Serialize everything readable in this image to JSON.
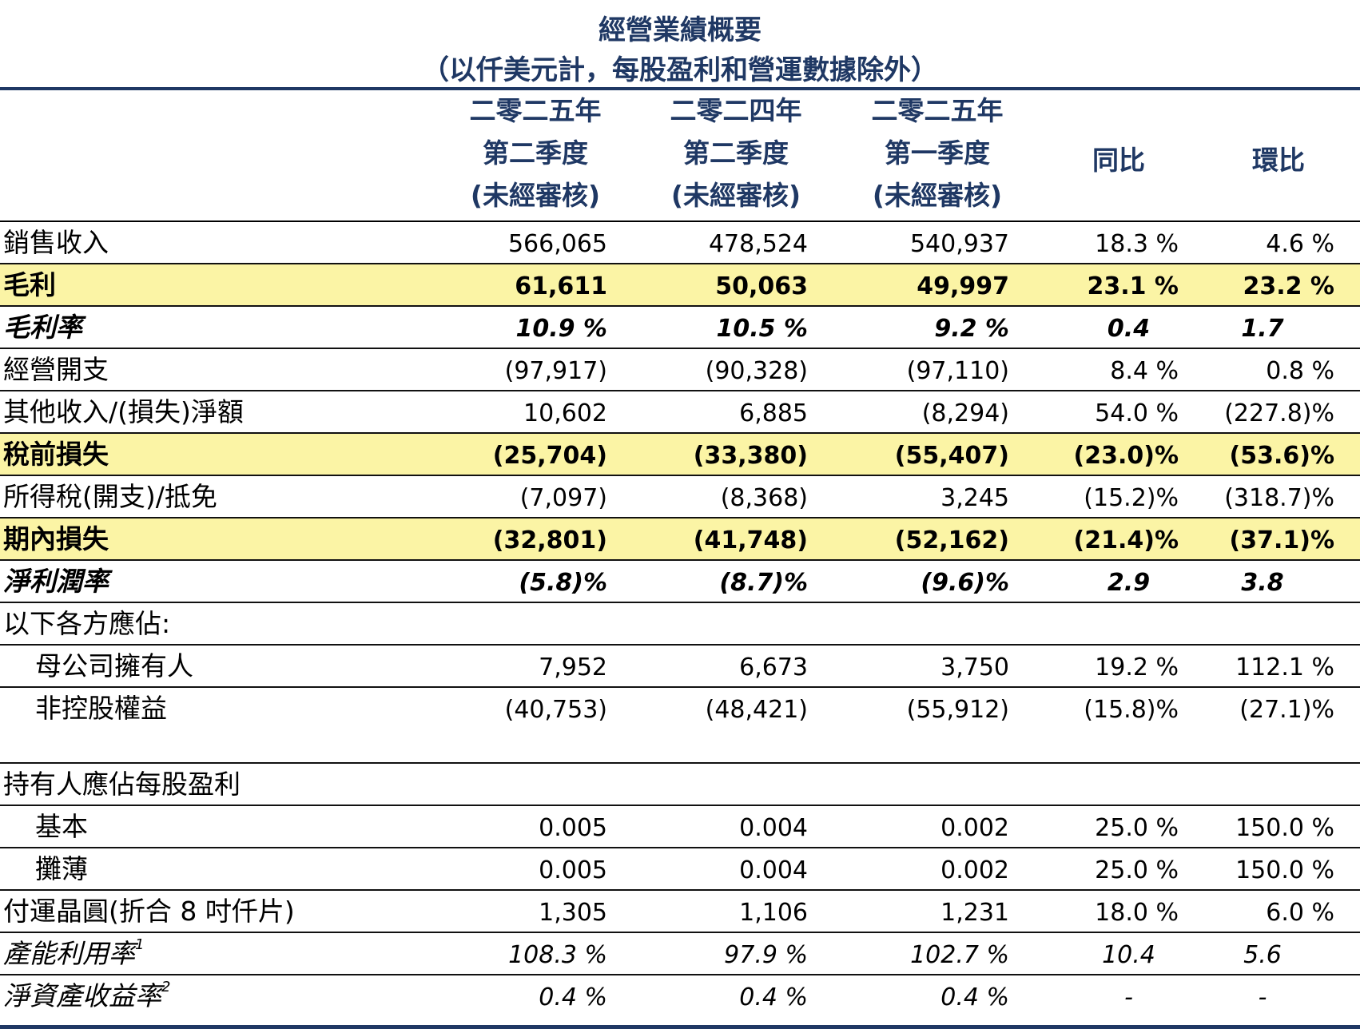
{
  "title": "經營業績概要",
  "subtitle": "（以仟美元計，每股盈利和營運數據除外）",
  "headers": {
    "col1": [
      "二零二五年",
      "第二季度",
      "(未經審核)"
    ],
    "col2": [
      "二零二四年",
      "第二季度",
      "(未經審核)"
    ],
    "col3": [
      "二零二五年",
      "第一季度",
      "(未經審核)"
    ],
    "col4": "同比",
    "col5": "環比"
  },
  "rows": [
    {
      "label": "銷售收入",
      "v": [
        "566,065",
        "478,524",
        "540,937",
        "18.3 %",
        "4.6 %"
      ]
    },
    {
      "label": "毛利",
      "v": [
        "61,611",
        "50,063",
        "49,997",
        "23.1 %",
        "23.2 %"
      ]
    },
    {
      "label": "毛利率",
      "v": [
        "10.9 %",
        "10.5 %",
        "9.2 %",
        "0.4",
        "1.7"
      ]
    },
    {
      "label": "經營開支",
      "v": [
        "(97,917)",
        "(90,328)",
        "(97,110)",
        "8.4 %",
        "0.8 %"
      ]
    },
    {
      "label": "其他收入/(損失)淨額",
      "v": [
        "10,602",
        "6,885",
        "(8,294)",
        "54.0 %",
        "(227.8)%"
      ]
    },
    {
      "label": "稅前損失",
      "v": [
        "(25,704)",
        "(33,380)",
        "(55,407)",
        "(23.0)%",
        "(53.6)%"
      ]
    },
    {
      "label": "所得稅(開支)/抵免",
      "v": [
        "(7,097)",
        "(8,368)",
        "3,245",
        "(15.2)%",
        "(318.7)%"
      ]
    },
    {
      "label": "期內損失",
      "v": [
        "(32,801)",
        "(41,748)",
        "(52,162)",
        "(21.4)%",
        "(37.1)%"
      ]
    },
    {
      "label": "淨利潤率",
      "v": [
        "(5.8)%",
        "(8.7)%",
        "(9.6)%",
        "2.9",
        "3.8"
      ]
    },
    {
      "label": "以下各方應佔:",
      "v": [
        "",
        "",
        "",
        "",
        ""
      ]
    },
    {
      "label": "母公司擁有人",
      "v": [
        "7,952",
        "6,673",
        "3,750",
        "19.2 %",
        "112.1 %"
      ]
    },
    {
      "label": "非控股權益",
      "v": [
        "(40,753)",
        "(48,421)",
        "(55,912)",
        "(15.8)%",
        "(27.1)%"
      ]
    },
    {
      "label": "持有人應佔每股盈利",
      "v": [
        "",
        "",
        "",
        "",
        ""
      ]
    },
    {
      "label": "基本",
      "v": [
        "0.005",
        "0.004",
        "0.002",
        "25.0 %",
        "150.0 %"
      ]
    },
    {
      "label": "攤薄",
      "v": [
        "0.005",
        "0.004",
        "0.002",
        "25.0 %",
        "150.0 %"
      ]
    },
    {
      "label": "付運晶圓(折合 8 吋仟片)",
      "v": [
        "1,305",
        "1,106",
        "1,231",
        "18.0 %",
        "6.0 %"
      ]
    },
    {
      "label": "產能利用率",
      "sup": "1",
      "v": [
        "108.3 %",
        "97.9 %",
        "102.7 %",
        "10.4",
        "5.6"
      ]
    },
    {
      "label": "淨資產收益率",
      "sup": "2",
      "v": [
        "0.4 %",
        "0.4 %",
        "0.4 %",
        "-",
        "-"
      ]
    }
  ],
  "colors": {
    "title": "#1f3864",
    "highlight": "#fbf4a5"
  }
}
